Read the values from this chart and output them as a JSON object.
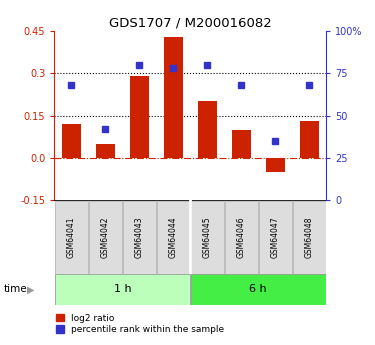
{
  "title": "GDS1707 / M200016082",
  "samples": [
    "GSM64041",
    "GSM64042",
    "GSM64043",
    "GSM64044",
    "GSM64045",
    "GSM64046",
    "GSM64047",
    "GSM64048"
  ],
  "log2_ratio": [
    0.12,
    0.05,
    0.29,
    0.43,
    0.2,
    0.1,
    -0.05,
    0.13
  ],
  "percentile_rank": [
    68,
    42,
    80,
    78,
    80,
    68,
    35,
    68
  ],
  "ylim_left": [
    -0.15,
    0.45
  ],
  "ylim_right": [
    0,
    100
  ],
  "yticks_left": [
    -0.15,
    0.0,
    0.15,
    0.3,
    0.45
  ],
  "yticks_right": [
    0,
    25,
    50,
    75,
    100
  ],
  "hlines_dotted": [
    0.15,
    0.3
  ],
  "hline_zero_color": "#cc2200",
  "bar_color": "#cc2200",
  "dot_color": "#3333cc",
  "group1_label": "1 h",
  "group2_label": "6 h",
  "light_green": "#bbffbb",
  "dark_green": "#44ee44",
  "time_label": "time",
  "legend1": "log2 ratio",
  "legend2": "percentile rank within the sample",
  "title_fontsize": 9.5
}
